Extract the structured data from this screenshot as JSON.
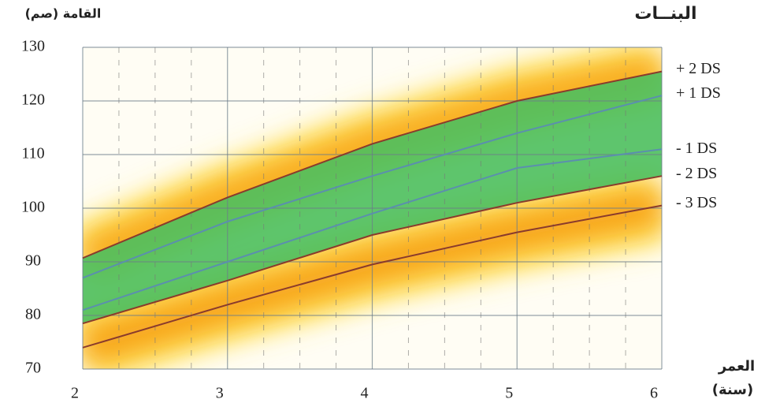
{
  "chart_data": {
    "type": "line",
    "title": "البنــات",
    "y_label": "القامة (صم)",
    "x_label": "العمر",
    "x_unit": "(سنة)",
    "x": [
      2,
      3,
      4,
      5,
      6
    ],
    "series": [
      {
        "name": "+ 2 DS",
        "color": "#8a3b2c",
        "values": [
          90.7,
          102,
          112,
          120,
          125.5
        ]
      },
      {
        "name": "+ 1 DS",
        "color": "#5b8fae",
        "values": [
          87,
          97.5,
          106,
          114,
          121
        ]
      },
      {
        "name": "- 1 DS",
        "color": "#5b8fae",
        "values": [
          81,
          90,
          99,
          107.5,
          111
        ]
      },
      {
        "name": "- 2 DS",
        "color": "#8a3b2c",
        "values": [
          78.5,
          86.5,
          95,
          101,
          106
        ]
      },
      {
        "name": "- 3 DS",
        "color": "#8a3b2c",
        "values": [
          74,
          82,
          89.5,
          95.5,
          100.5
        ]
      }
    ],
    "xlim": [
      2,
      6
    ],
    "ylim": [
      70,
      130
    ],
    "xticks": [
      2,
      3,
      4,
      5,
      6
    ],
    "yticks": [
      70,
      80,
      90,
      100,
      110,
      120,
      130
    ],
    "grid": true
  }
}
